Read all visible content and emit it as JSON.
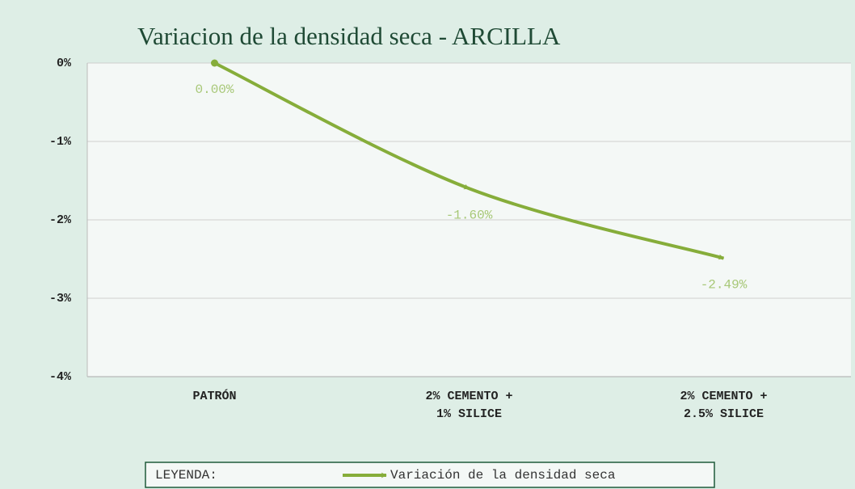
{
  "chart_data": {
    "type": "line",
    "title": "Variacion de la densidad seca - ARCILLA",
    "categories": [
      "PATRÓN",
      "2% CEMENTO + 1% SILICE",
      "2% CEMENTO + 2.5% SILICE"
    ],
    "series": [
      {
        "name": "Variación de la densidad seca",
        "color": "#86ad3a",
        "values": [
          0,
          -1.6,
          -2.49
        ],
        "value_labels": [
          "0.00%",
          "-1.60%",
          "-2.49%"
        ]
      }
    ],
    "ylim": [
      -4,
      0
    ],
    "yticks": [
      {
        "value": 0,
        "label": "0%"
      },
      {
        "value": -1,
        "label": "-1%"
      },
      {
        "value": -2,
        "label": "-2%"
      },
      {
        "value": -3,
        "label": "-3%"
      },
      {
        "value": -4,
        "label": "-4%"
      }
    ],
    "grid": true,
    "legend_title": "LEYENDA:",
    "legend": "bottom"
  }
}
